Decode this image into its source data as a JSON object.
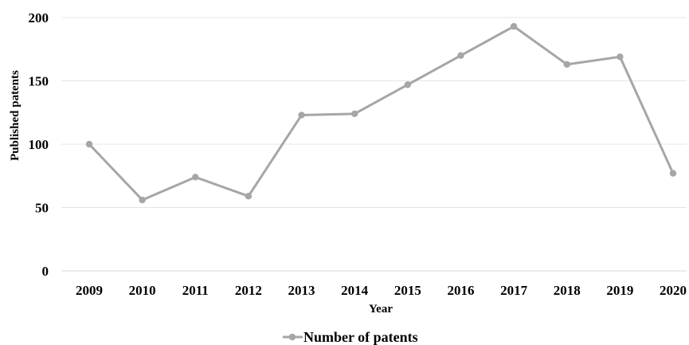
{
  "chart_data": {
    "type": "line",
    "title": "",
    "xlabel": "Year",
    "ylabel": "Published patents",
    "categories": [
      "2009",
      "2010",
      "2011",
      "2012",
      "2013",
      "2014",
      "2015",
      "2016",
      "2017",
      "2018",
      "2019",
      "2020"
    ],
    "series": [
      {
        "name": "Number of patents",
        "values": [
          100,
          56,
          74,
          59,
          123,
          124,
          147,
          170,
          193,
          163,
          169,
          77
        ],
        "color": "#a6a6a6"
      }
    ],
    "yticks": [
      "0",
      "50",
      "100",
      "150",
      "200"
    ],
    "ylim": [
      0,
      200
    ],
    "grid": true,
    "legend_position": "bottom",
    "marker": "circle"
  }
}
